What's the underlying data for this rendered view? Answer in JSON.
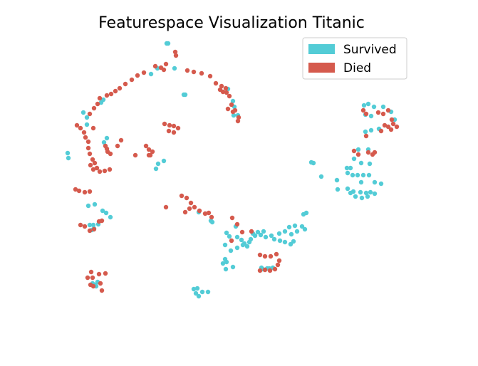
{
  "chart_data": {
    "type": "scatter",
    "title": "Featurespace Visualization Titanic",
    "legend": {
      "placement": "top-right"
    },
    "axes_visible": false,
    "grid": false,
    "series": [
      {
        "name": "Survived",
        "color": "#53ccd6",
        "points": [
          [
            234,
            61
          ],
          [
            236,
            61
          ],
          [
            221,
            96
          ],
          [
            245,
            96
          ],
          [
            212,
            104
          ],
          [
            142,
            144
          ],
          [
            145,
            140
          ],
          [
            117,
            158
          ],
          [
            122,
            165
          ],
          [
            122,
            175
          ],
          [
            260,
            133
          ],
          [
            258,
            133
          ],
          [
            95,
            215
          ],
          [
            96,
            222
          ],
          [
            150,
            194
          ],
          [
            146,
            200
          ],
          [
            219,
            237
          ],
          [
            222,
            230
          ],
          [
            230,
            226
          ],
          [
            320,
            125
          ],
          [
            329,
            150
          ],
          [
            334,
            162
          ],
          [
            328,
            162
          ],
          [
            327,
            142
          ],
          [
            511,
            148
          ],
          [
            517,
            146
          ],
          [
            525,
            150
          ],
          [
            538,
            150
          ],
          [
            549,
            157
          ],
          [
            513,
            161
          ],
          [
            521,
            163
          ],
          [
            513,
            185
          ],
          [
            521,
            183
          ],
          [
            532,
            181
          ],
          [
            554,
            168
          ],
          [
            503,
            210
          ],
          [
            517,
            210
          ],
          [
            497,
            223
          ],
          [
            507,
            229
          ],
          [
            519,
            230
          ],
          [
            437,
            228
          ],
          [
            440,
            229
          ],
          [
            451,
            248
          ],
          [
            473,
            253
          ],
          [
            474,
            266
          ],
          [
            487,
            236
          ],
          [
            492,
            236
          ],
          [
            488,
            243
          ],
          [
            495,
            246
          ],
          [
            502,
            246
          ],
          [
            510,
            246
          ],
          [
            518,
            246
          ],
          [
            526,
            256
          ],
          [
            535,
            258
          ],
          [
            507,
            256
          ],
          [
            488,
            265
          ],
          [
            496,
            269
          ],
          [
            506,
            270
          ],
          [
            514,
            271
          ],
          [
            520,
            270
          ],
          [
            492,
            271
          ],
          [
            499,
            276
          ],
          [
            508,
            278
          ],
          [
            516,
            276
          ],
          [
            526,
            272
          ],
          [
            124,
            289
          ],
          [
            133,
            287
          ],
          [
            144,
            296
          ],
          [
            149,
            299
          ],
          [
            155,
            305
          ],
          [
            126,
            316
          ],
          [
            131,
            316
          ],
          [
            138,
            315
          ],
          [
            132,
            321
          ],
          [
            129,
            323
          ],
          [
            279,
            298
          ],
          [
            296,
            310
          ],
          [
            298,
            312
          ],
          [
            318,
            327
          ],
          [
            322,
            332
          ],
          [
            316,
            344
          ],
          [
            324,
            352
          ],
          [
            331,
            318
          ],
          [
            333,
            333
          ],
          [
            339,
            337
          ],
          [
            343,
            342
          ],
          [
            347,
            346
          ],
          [
            352,
            336
          ],
          [
            355,
            328
          ],
          [
            362,
            326
          ],
          [
            370,
            325
          ],
          [
            373,
            333
          ],
          [
            381,
            331
          ],
          [
            333,
            348
          ],
          [
            341,
            344
          ],
          [
            350,
            340
          ],
          [
            358,
            331
          ],
          [
            366,
            330
          ],
          [
            385,
            336
          ],
          [
            393,
            338
          ],
          [
            400,
            340
          ],
          [
            408,
            343
          ],
          [
            412,
            339
          ],
          [
            392,
            328
          ],
          [
            400,
            325
          ],
          [
            406,
            319
          ],
          [
            414,
            317
          ],
          [
            424,
            318
          ],
          [
            426,
            301
          ],
          [
            430,
            299
          ],
          [
            409,
            329
          ],
          [
            417,
            325
          ],
          [
            428,
            322
          ],
          [
            313,
            370
          ],
          [
            317,
            378
          ],
          [
            327,
            375
          ],
          [
            316,
            364
          ],
          [
            318,
            368
          ],
          [
            367,
            376
          ],
          [
            375,
            377
          ],
          [
            383,
            376
          ],
          [
            369,
            378
          ],
          [
            378,
            377
          ],
          [
            130,
            398
          ],
          [
            134,
            400
          ],
          [
            137,
            396
          ],
          [
            135,
            402
          ],
          [
            272,
            406
          ],
          [
            275,
            412
          ],
          [
            279,
            416
          ],
          [
            284,
            410
          ],
          [
            292,
            410
          ],
          [
            277,
            405
          ]
        ]
      },
      {
        "name": "Died",
        "color": "#d55a4d",
        "points": [
          [
            233,
            90
          ],
          [
            218,
            93
          ],
          [
            226,
            95
          ],
          [
            230,
            98
          ],
          [
            247,
            78
          ],
          [
            246,
            73
          ],
          [
            202,
            102
          ],
          [
            193,
            106
          ],
          [
            185,
            112
          ],
          [
            176,
            118
          ],
          [
            168,
            124
          ],
          [
            162,
            128
          ],
          [
            156,
            132
          ],
          [
            150,
            134
          ],
          [
            140,
            138
          ],
          [
            137,
            146
          ],
          [
            132,
            152
          ],
          [
            126,
            160
          ],
          [
            108,
            176
          ],
          [
            113,
            180
          ],
          [
            118,
            186
          ],
          [
            131,
            180
          ],
          [
            120,
            193
          ],
          [
            124,
            199
          ],
          [
            124,
            208
          ],
          [
            126,
            216
          ],
          [
            130,
            224
          ],
          [
            133,
            229
          ],
          [
            136,
            236
          ],
          [
            140,
            241
          ],
          [
            147,
            240
          ],
          [
            154,
            238
          ],
          [
            131,
            238
          ],
          [
            127,
            232
          ],
          [
            148,
            205
          ],
          [
            151,
            213
          ],
          [
            155,
            216
          ],
          [
            150,
            209
          ],
          [
            165,
            205
          ],
          [
            170,
            197
          ],
          [
            231,
            174
          ],
          [
            238,
            176
          ],
          [
            244,
            177
          ],
          [
            250,
            180
          ],
          [
            237,
            184
          ],
          [
            244,
            186
          ],
          [
            205,
            205
          ],
          [
            209,
            210
          ],
          [
            214,
            213
          ],
          [
            190,
            218
          ],
          [
            209,
            218
          ],
          [
            211,
            218
          ],
          [
            263,
            99
          ],
          [
            272,
            101
          ],
          [
            283,
            103
          ],
          [
            295,
            107
          ],
          [
            303,
            117
          ],
          [
            309,
            126
          ],
          [
            313,
            129
          ],
          [
            318,
            130
          ],
          [
            322,
            135
          ],
          [
            325,
            147
          ],
          [
            330,
            155
          ],
          [
            335,
            165
          ],
          [
            320,
            153
          ],
          [
            327,
            157
          ],
          [
            334,
            170
          ],
          [
            311,
            121
          ],
          [
            317,
            124
          ],
          [
            510,
            155
          ],
          [
            514,
            160
          ],
          [
            531,
            158
          ],
          [
            538,
            160
          ],
          [
            545,
            155
          ],
          [
            550,
            168
          ],
          [
            552,
            174
          ],
          [
            557,
            178
          ],
          [
            549,
            182
          ],
          [
            545,
            178
          ],
          [
            540,
            176
          ],
          [
            535,
            184
          ],
          [
            514,
            191
          ],
          [
            523,
            217
          ],
          [
            526,
            214
          ],
          [
            517,
            214
          ],
          [
            497,
            212
          ],
          [
            503,
            217
          ],
          [
            106,
            266
          ],
          [
            111,
            268
          ],
          [
            119,
            270
          ],
          [
            126,
            269
          ],
          [
            113,
            316
          ],
          [
            119,
            318
          ],
          [
            126,
            324
          ],
          [
            132,
            322
          ],
          [
            139,
            311
          ],
          [
            143,
            310
          ],
          [
            255,
            275
          ],
          [
            262,
            278
          ],
          [
            268,
            285
          ],
          [
            273,
            291
          ],
          [
            266,
            293
          ],
          [
            260,
            298
          ],
          [
            233,
            291
          ],
          [
            280,
            296
          ],
          [
            288,
            300
          ],
          [
            297,
            305
          ],
          [
            293,
            299
          ],
          [
            326,
            306
          ],
          [
            333,
            315
          ],
          [
            340,
            326
          ],
          [
            353,
            325
          ],
          [
            325,
            338
          ],
          [
            365,
            358
          ],
          [
            372,
            360
          ],
          [
            380,
            360
          ],
          [
            388,
            357
          ],
          [
            392,
            366
          ],
          [
            365,
            380
          ],
          [
            372,
            379
          ],
          [
            379,
            380
          ],
          [
            386,
            378
          ],
          [
            390,
            372
          ],
          [
            128,
            382
          ],
          [
            123,
            390
          ],
          [
            130,
            390
          ],
          [
            139,
            385
          ],
          [
            148,
            384
          ],
          [
            127,
            400
          ],
          [
            131,
            402
          ],
          [
            141,
            398
          ],
          [
            143,
            408
          ]
        ]
      }
    ]
  }
}
